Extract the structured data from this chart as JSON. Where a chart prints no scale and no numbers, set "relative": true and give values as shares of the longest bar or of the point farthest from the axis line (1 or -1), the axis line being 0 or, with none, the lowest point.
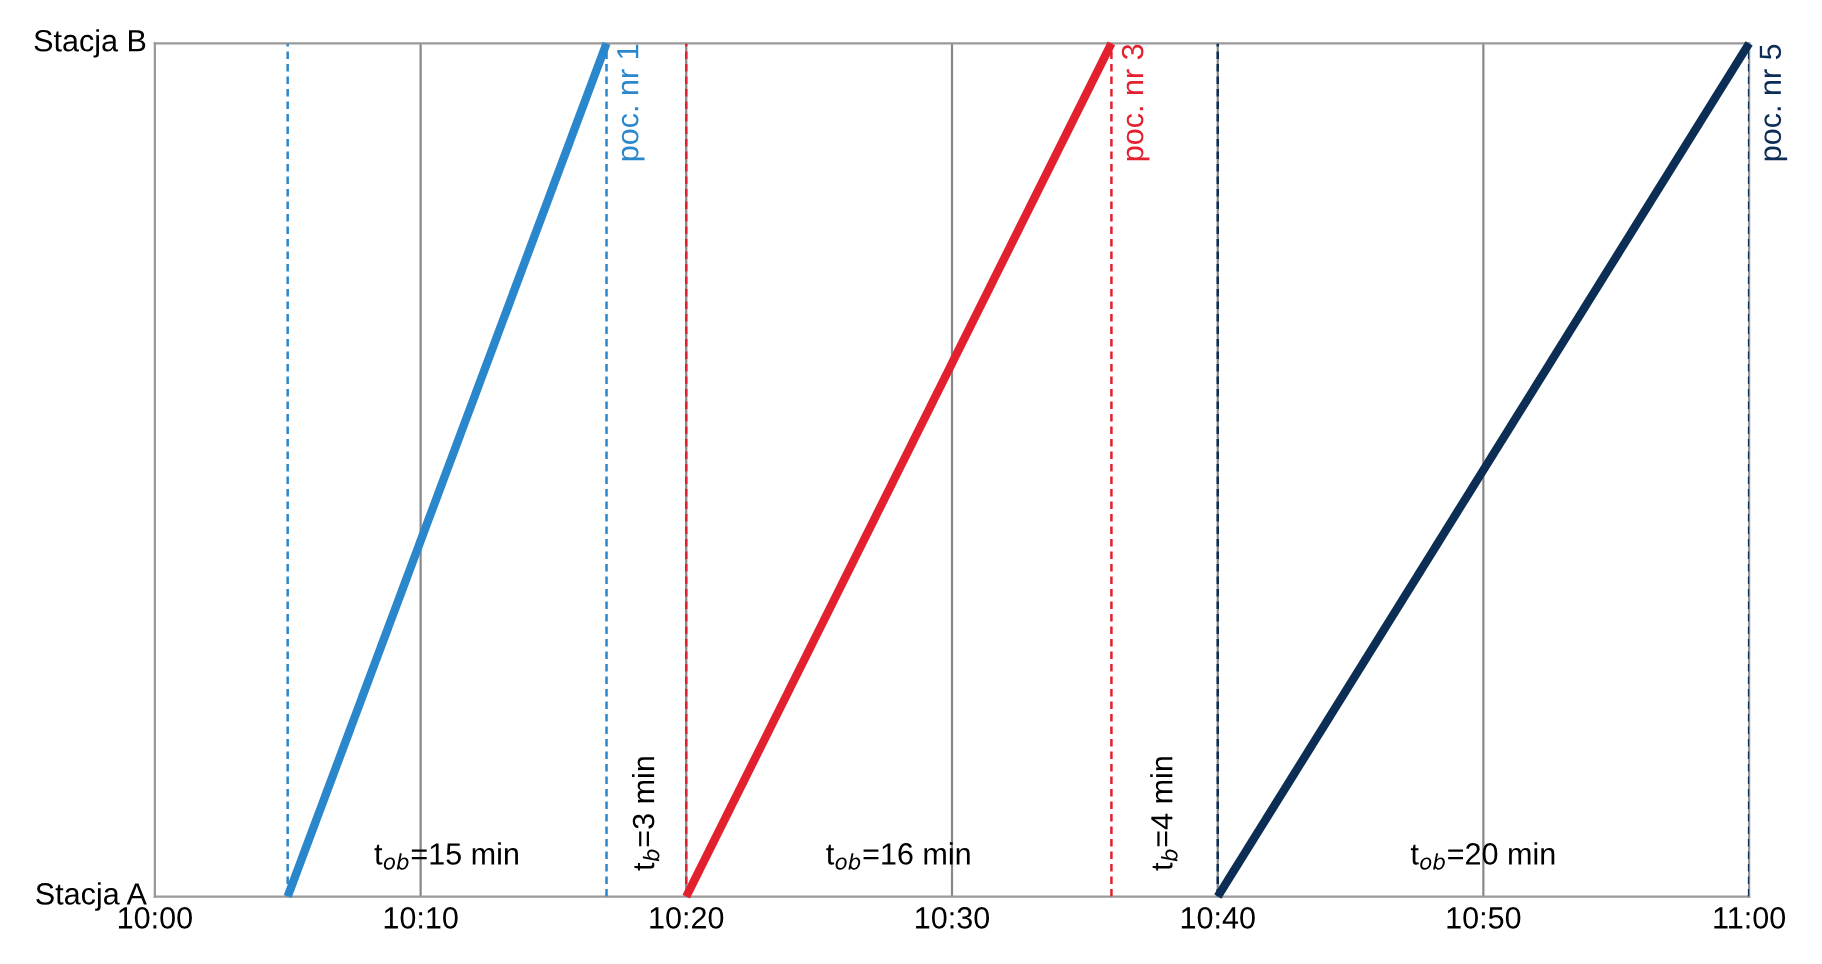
{
  "chart_data": {
    "type": "line",
    "relative": true,
    "series": [
      {
        "name": "poc. nr 1",
        "color": "#2a87cc",
        "x": [
          10.0833,
          10.2833
        ],
        "values": [
          0,
          1
        ]
      },
      {
        "name": "poc. nr 3",
        "color": "#e3202e",
        "x": [
          10.3333,
          10.6
        ],
        "values": [
          0,
          1
        ]
      },
      {
        "name": "poc. nr 5",
        "color": "#0c2e55",
        "x": [
          10.6667,
          11.0
        ],
        "values": [
          0,
          1
        ]
      }
    ],
    "ref_lines": [
      {
        "axis": "x",
        "value": 10.0833,
        "color": "#2a87cc",
        "line_style": "dashed"
      },
      {
        "axis": "x",
        "value": 10.2833,
        "color": "#2a87cc",
        "line_style": "dashed"
      },
      {
        "axis": "x",
        "value": 10.3333,
        "color": "#e3202e",
        "line_style": "dashed"
      },
      {
        "axis": "x",
        "value": 10.6,
        "color": "#e3202e",
        "line_style": "dashed"
      },
      {
        "axis": "x",
        "value": 10.6667,
        "color": "#0c2e55",
        "line_style": "dashed"
      },
      {
        "axis": "x",
        "value": 11.0,
        "color": "#0c2e55",
        "line_style": "dashed"
      }
    ],
    "annotations": [
      "Stacja A",
      "Stacja B",
      "t$_{ob}$=15 min",
      "t$_{b}$=3 min",
      "t$_{ob}$=16 min",
      "t$_{b}$=4 min",
      "t$_{ob}$=20 min"
    ],
    "xlim": [
      10.0,
      11.0
    ],
    "xticks": [
      {
        "value": 10.0,
        "label": "10:00"
      },
      {
        "value": 10.1667,
        "label": "10:10"
      },
      {
        "value": 10.3333,
        "label": "10:20"
      },
      {
        "value": 10.5,
        "label": "10:30"
      },
      {
        "value": 10.6667,
        "label": "10:40"
      },
      {
        "value": 10.8333,
        "label": "10:50"
      },
      {
        "value": 11.0,
        "label": "11:00"
      }
    ],
    "grid": "x",
    "legend": false,
    "marker": "none",
    "line_style": "solid"
  }
}
